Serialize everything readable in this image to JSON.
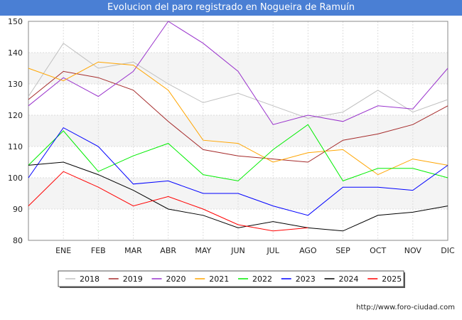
{
  "page": {
    "title": "Evolucion del paro registrado en Nogueira de Ramuín",
    "footer": "http://www.foro-ciudad.com"
  },
  "chart_data": {
    "type": "line",
    "title": "Evolucion del paro registrado en Nogueira de Ramuín",
    "xlabel": "",
    "ylabel": "",
    "categories": [
      "",
      "ENE",
      "FEB",
      "MAR",
      "ABR",
      "MAY",
      "JUN",
      "JUL",
      "AGO",
      "SEP",
      "OCT",
      "NOV",
      "DIC"
    ],
    "ylim": [
      80,
      150
    ],
    "yticks": [
      80,
      90,
      100,
      110,
      120,
      130,
      140,
      150
    ],
    "grid": true,
    "legend_position": "bottom",
    "series": [
      {
        "name": "2018",
        "color": "#c0c0c0",
        "values": [
          126,
          143,
          135,
          137,
          130,
          124,
          127,
          123,
          119,
          121,
          128,
          121,
          125
        ]
      },
      {
        "name": "2019",
        "color": "#a52a2a",
        "values": [
          125,
          134,
          132,
          128,
          118,
          109,
          107,
          106,
          105,
          112,
          114,
          117,
          123
        ]
      },
      {
        "name": "2020",
        "color": "#9932cc",
        "values": [
          123,
          132,
          126,
          134,
          150,
          143,
          134,
          117,
          120,
          118,
          123,
          122,
          135
        ]
      },
      {
        "name": "2021",
        "color": "#ffa500",
        "values": [
          135,
          131,
          137,
          136,
          128,
          112,
          111,
          105,
          108,
          109,
          101,
          106,
          104
        ]
      },
      {
        "name": "2022",
        "color": "#00ee00",
        "values": [
          104,
          115,
          102,
          107,
          111,
          101,
          99,
          109,
          117,
          99,
          103,
          103,
          100
        ]
      },
      {
        "name": "2023",
        "color": "#0000ff",
        "values": [
          100,
          116,
          110,
          98,
          99,
          95,
          95,
          91,
          88,
          97,
          97,
          96,
          104
        ]
      },
      {
        "name": "2024",
        "color": "#000000",
        "values": [
          104,
          105,
          101,
          96,
          90,
          88,
          84,
          86,
          84,
          83,
          88,
          89,
          91
        ]
      },
      {
        "name": "2025",
        "color": "#ff0000",
        "values": [
          91,
          102,
          97,
          91,
          94,
          90,
          85,
          83,
          84,
          null,
          null,
          null,
          null
        ]
      }
    ]
  }
}
